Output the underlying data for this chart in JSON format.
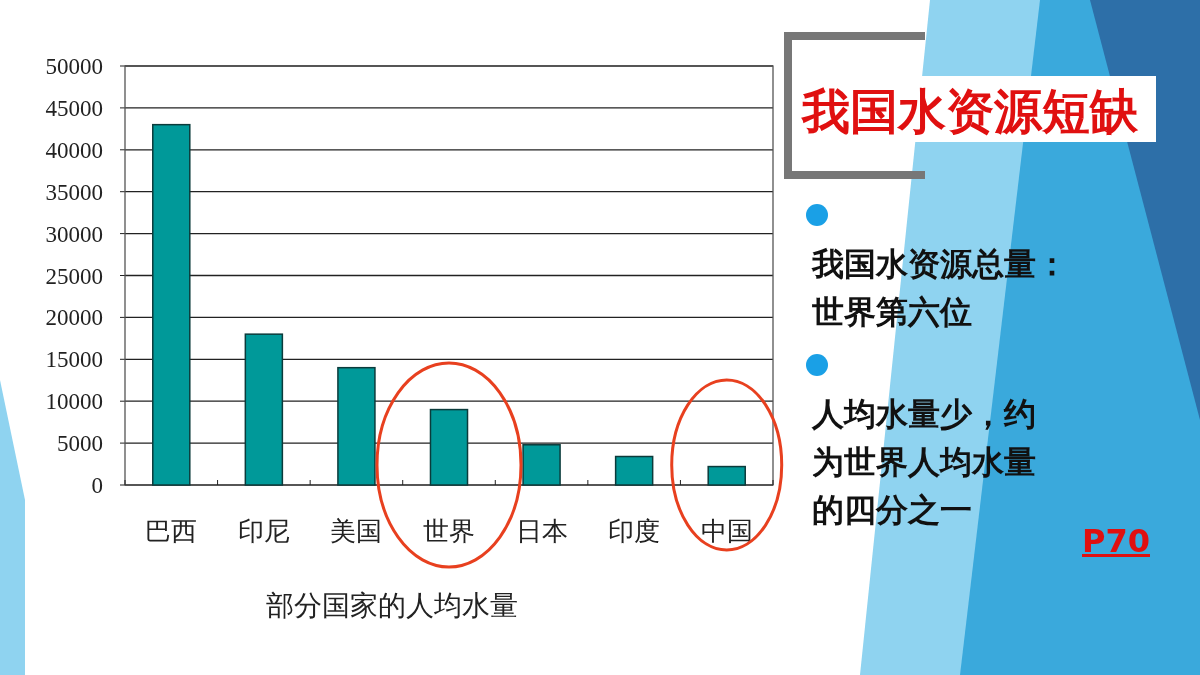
{
  "chart_data": {
    "type": "bar",
    "title": "我国水资源短缺",
    "xlabel": "部分国家的人均水量",
    "categories": [
      "巴西",
      "印尼",
      "美国",
      "世界",
      "日本",
      "印度",
      "中国"
    ],
    "values": [
      43000,
      18000,
      14000,
      9000,
      4800,
      3400,
      2200
    ],
    "color": "#009999",
    "ylim": [
      0,
      50000
    ],
    "yticks": [
      0,
      5000,
      10000,
      15000,
      20000,
      25000,
      30000,
      35000,
      40000,
      45000,
      50000
    ],
    "grid": "y",
    "annotations": [
      "我国水资源总量：世界第六位",
      "人均水量少，约为世界人均水量的四分之一",
      "P70"
    ]
  }
}
